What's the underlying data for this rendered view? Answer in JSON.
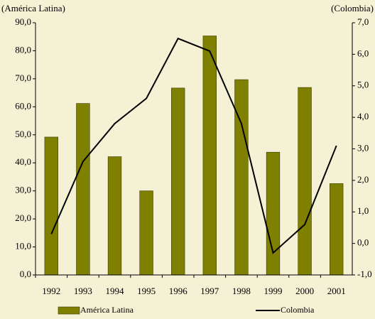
{
  "chart_data": {
    "type": "bar_line",
    "y_axis_label": "(América Latina)",
    "y2_axis_label": "(Colombia)",
    "categories": [
      "1992",
      "1993",
      "1994",
      "1995",
      "1996",
      "1997",
      "1998",
      "1999",
      "2000",
      "2001"
    ],
    "series": [
      {
        "name": "América Latina",
        "color": "#808000",
        "type": "bar",
        "axis": "y",
        "values": [
          49.2,
          61.2,
          42.2,
          30.0,
          66.7,
          85.3,
          69.7,
          43.8,
          66.9,
          32.6
        ]
      },
      {
        "name": "Colombia",
        "color": "#000000",
        "type": "line",
        "axis": "y2",
        "values": [
          0.3,
          2.6,
          3.8,
          4.6,
          6.5,
          6.1,
          3.8,
          -0.3,
          0.6,
          3.1
        ]
      }
    ],
    "ylim": [
      0,
      90
    ],
    "yticks": [
      {
        "value": 0,
        "label": "0,0"
      },
      {
        "value": 10,
        "label": "10,0"
      },
      {
        "value": 20,
        "label": "20,0"
      },
      {
        "value": 30,
        "label": "30,0"
      },
      {
        "value": 40,
        "label": "40,0"
      },
      {
        "value": 50,
        "label": "50,0"
      },
      {
        "value": 60,
        "label": "60,0"
      },
      {
        "value": 70,
        "label": "70,0"
      },
      {
        "value": 80,
        "label": "80,0"
      },
      {
        "value": 90,
        "label": "90,0"
      }
    ],
    "y2lim": [
      -1,
      7
    ],
    "y2ticks": [
      {
        "value": -1,
        "label": "-1,0"
      },
      {
        "value": 0,
        "label": "0,0"
      },
      {
        "value": 1,
        "label": "1,0"
      },
      {
        "value": 2,
        "label": "2,0"
      },
      {
        "value": 3,
        "label": "3,0"
      },
      {
        "value": 4,
        "label": "4,0"
      },
      {
        "value": 5,
        "label": "5,0"
      },
      {
        "value": 6,
        "label": "6,0"
      },
      {
        "value": 7,
        "label": "7,0"
      }
    ],
    "grid": false,
    "legend": "bottom"
  }
}
